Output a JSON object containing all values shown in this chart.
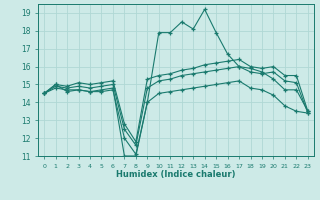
{
  "xlabel": "Humidex (Indice chaleur)",
  "x": [
    0,
    1,
    2,
    3,
    4,
    5,
    6,
    7,
    8,
    9,
    10,
    11,
    12,
    13,
    14,
    15,
    16,
    17,
    18,
    19,
    20,
    21,
    22,
    23
  ],
  "line1": [
    14.5,
    15.0,
    14.6,
    14.7,
    14.6,
    14.7,
    14.8,
    11.0,
    11.0,
    14.0,
    17.9,
    17.9,
    18.5,
    18.1,
    19.2,
    17.9,
    16.7,
    16.0,
    15.9,
    15.7,
    15.3,
    14.7,
    14.7,
    13.5
  ],
  "line2": [
    14.5,
    15.0,
    14.9,
    15.1,
    15.0,
    15.1,
    15.2,
    12.8,
    11.8,
    15.3,
    15.5,
    15.6,
    15.8,
    15.9,
    16.1,
    16.2,
    16.3,
    16.4,
    16.0,
    15.9,
    16.0,
    15.5,
    15.5,
    13.5
  ],
  "line3": [
    14.5,
    14.9,
    14.8,
    14.9,
    14.8,
    14.9,
    15.0,
    12.5,
    11.6,
    14.8,
    15.2,
    15.3,
    15.5,
    15.6,
    15.7,
    15.8,
    15.9,
    16.0,
    15.7,
    15.6,
    15.7,
    15.2,
    15.1,
    13.4
  ],
  "line4": [
    14.5,
    14.8,
    14.7,
    14.7,
    14.6,
    14.6,
    14.7,
    12.0,
    11.1,
    14.0,
    14.5,
    14.6,
    14.7,
    14.8,
    14.9,
    15.0,
    15.1,
    15.2,
    14.8,
    14.7,
    14.4,
    13.8,
    13.5,
    13.4
  ],
  "line_color": "#1a7a6e",
  "bg_color": "#cdeae7",
  "grid_color": "#b0d8d4",
  "ylim": [
    11,
    19.5
  ],
  "xlim": [
    -0.5,
    23.5
  ],
  "yticks": [
    11,
    12,
    13,
    14,
    15,
    16,
    17,
    18,
    19
  ],
  "xticks": [
    0,
    1,
    2,
    3,
    4,
    5,
    6,
    7,
    8,
    9,
    10,
    11,
    12,
    13,
    14,
    15,
    16,
    17,
    18,
    19,
    20,
    21,
    22,
    23
  ]
}
